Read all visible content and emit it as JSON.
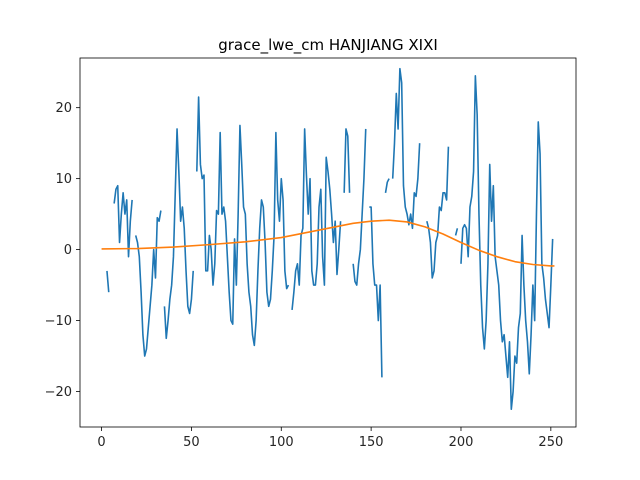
{
  "chart_data": {
    "type": "line",
    "title": "grace_lwe_cm HANJIANG XIXI",
    "xlabel": "",
    "ylabel": "",
    "xlim": [
      -12,
      264
    ],
    "ylim": [
      -25,
      27
    ],
    "x_ticks": [
      0,
      50,
      100,
      150,
      200,
      250
    ],
    "y_ticks": [
      -20,
      -10,
      0,
      10,
      20
    ],
    "grid": false,
    "series": [
      {
        "color": "#1f77b4",
        "points": [
          [
            3,
            -3
          ],
          [
            4,
            -6
          ],
          [
            7,
            6.5
          ],
          [
            8,
            8.5
          ],
          [
            9,
            9
          ],
          [
            10,
            1
          ],
          [
            11,
            5
          ],
          [
            12,
            8
          ],
          [
            13,
            5
          ],
          [
            14,
            7
          ],
          [
            15,
            -1
          ],
          [
            16,
            4
          ],
          [
            17,
            7
          ],
          [
            19,
            2
          ],
          [
            20,
            1
          ],
          [
            21,
            -1
          ],
          [
            22,
            -6
          ],
          [
            23,
            -12
          ],
          [
            24,
            -15
          ],
          [
            25,
            -14
          ],
          [
            26,
            -11
          ],
          [
            27,
            -8
          ],
          [
            28,
            -5
          ],
          [
            29,
            0
          ],
          [
            30,
            -4
          ],
          [
            31,
            4.5
          ],
          [
            32,
            4
          ],
          [
            33,
            5.5
          ],
          [
            35,
            -8
          ],
          [
            36,
            -12.5
          ],
          [
            37,
            -10
          ],
          [
            38,
            -7
          ],
          [
            39,
            -5
          ],
          [
            40,
            -1
          ],
          [
            41,
            8
          ],
          [
            42,
            17
          ],
          [
            43,
            11
          ],
          [
            44,
            4
          ],
          [
            45,
            6
          ],
          [
            46,
            3
          ],
          [
            47,
            -3
          ],
          [
            48,
            -8
          ],
          [
            49,
            -9
          ],
          [
            50,
            -7
          ],
          [
            51,
            -3
          ],
          [
            53,
            11
          ],
          [
            54,
            21.5
          ],
          [
            55,
            12
          ],
          [
            56,
            10
          ],
          [
            57,
            10.5
          ],
          [
            58,
            -3
          ],
          [
            59,
            -3
          ],
          [
            60,
            2
          ],
          [
            61,
            0
          ],
          [
            62,
            -5
          ],
          [
            63,
            -2
          ],
          [
            64,
            5.5
          ],
          [
            65,
            5
          ],
          [
            66,
            16.5
          ],
          [
            67,
            5
          ],
          [
            68,
            6
          ],
          [
            69,
            4
          ],
          [
            70,
            -1
          ],
          [
            71,
            -6
          ],
          [
            72,
            -10
          ],
          [
            73,
            -10.5
          ],
          [
            74,
            1.5
          ],
          [
            75,
            -5
          ],
          [
            76,
            5
          ],
          [
            77,
            17.5
          ],
          [
            78,
            12
          ],
          [
            79,
            6
          ],
          [
            80,
            5
          ],
          [
            81,
            -2
          ],
          [
            82,
            -6
          ],
          [
            83,
            -8
          ],
          [
            84,
            -12
          ],
          [
            85,
            -13.5
          ],
          [
            86,
            -10
          ],
          [
            87,
            -3
          ],
          [
            88,
            3
          ],
          [
            89,
            7
          ],
          [
            90,
            6
          ],
          [
            91,
            1
          ],
          [
            92,
            -6
          ],
          [
            93,
            -8
          ],
          [
            94,
            -7
          ],
          [
            95,
            -3
          ],
          [
            96,
            2
          ],
          [
            97,
            16.5
          ],
          [
            98,
            7
          ],
          [
            99,
            4
          ],
          [
            100,
            10
          ],
          [
            101,
            7
          ],
          [
            102,
            -3
          ],
          [
            103,
            -5.5
          ],
          [
            104,
            -5
          ],
          [
            106,
            -8.5
          ],
          [
            107,
            -6
          ],
          [
            108,
            -3
          ],
          [
            109,
            -2
          ],
          [
            110,
            -5
          ],
          [
            111,
            2
          ],
          [
            112,
            3
          ],
          [
            113,
            17
          ],
          [
            114,
            10.5
          ],
          [
            115,
            5
          ],
          [
            116,
            10
          ],
          [
            117,
            -3
          ],
          [
            118,
            -5
          ],
          [
            119,
            -5
          ],
          [
            120,
            -2
          ],
          [
            121,
            6
          ],
          [
            122,
            8.5
          ],
          [
            123,
            -1
          ],
          [
            124,
            -5
          ],
          [
            125,
            13
          ],
          [
            126,
            11
          ],
          [
            127,
            8.5
          ],
          [
            128,
            5
          ],
          [
            129,
            1
          ],
          [
            130,
            4
          ],
          [
            131,
            -3.5
          ],
          [
            132,
            0
          ],
          [
            133,
            4
          ],
          [
            135,
            8
          ],
          [
            136,
            17
          ],
          [
            137,
            16
          ],
          [
            138,
            8
          ],
          [
            140,
            -2
          ],
          [
            141,
            -4.5
          ],
          [
            142,
            -5
          ],
          [
            143,
            -2
          ],
          [
            144,
            0
          ],
          [
            145,
            5
          ],
          [
            146,
            10
          ],
          [
            147,
            17
          ],
          [
            149,
            6
          ],
          [
            150,
            6
          ],
          [
            151,
            -2
          ],
          [
            152,
            -5
          ],
          [
            153,
            -5
          ],
          [
            154,
            -10
          ],
          [
            155,
            -5
          ],
          [
            156,
            -18
          ],
          [
            158,
            8
          ],
          [
            159,
            9.5
          ],
          [
            160,
            10
          ],
          [
            162,
            10
          ],
          [
            163,
            15
          ],
          [
            164,
            22
          ],
          [
            165,
            17
          ],
          [
            166,
            25.5
          ],
          [
            167,
            23.5
          ],
          [
            168,
            9
          ],
          [
            169,
            6
          ],
          [
            170,
            5
          ],
          [
            171,
            3.5
          ],
          [
            172,
            5
          ],
          [
            173,
            3
          ],
          [
            174,
            8
          ],
          [
            175,
            7.5
          ],
          [
            176,
            10
          ],
          [
            177,
            15
          ],
          [
            181,
            4
          ],
          [
            182,
            3
          ],
          [
            183,
            1
          ],
          [
            184,
            -4
          ],
          [
            185,
            -3
          ],
          [
            186,
            1
          ],
          [
            187,
            2
          ],
          [
            188,
            6
          ],
          [
            189,
            5.5
          ],
          [
            190,
            8
          ],
          [
            191,
            8
          ],
          [
            192,
            7
          ],
          [
            193,
            14.5
          ],
          [
            197,
            2
          ],
          [
            198,
            3
          ],
          [
            200,
            -2
          ],
          [
            201,
            3
          ],
          [
            202,
            3.5
          ],
          [
            203,
            3
          ],
          [
            204,
            -1
          ],
          [
            205,
            6
          ],
          [
            206,
            7.5
          ],
          [
            207,
            11
          ],
          [
            208,
            24.5
          ],
          [
            209,
            19
          ],
          [
            210,
            5
          ],
          [
            211,
            -5
          ],
          [
            212,
            -11
          ],
          [
            213,
            -14
          ],
          [
            214,
            -10
          ],
          [
            215,
            -2
          ],
          [
            216,
            12
          ],
          [
            217,
            4
          ],
          [
            218,
            9
          ],
          [
            219,
            -1
          ],
          [
            220,
            -3
          ],
          [
            221,
            -5
          ],
          [
            222,
            -10
          ],
          [
            223,
            -13
          ],
          [
            224,
            -12
          ],
          [
            225,
            -15
          ],
          [
            226,
            -18
          ],
          [
            227,
            -13
          ],
          [
            228,
            -22.5
          ],
          [
            229,
            -20
          ],
          [
            230,
            -15
          ],
          [
            231,
            -16
          ],
          [
            232,
            -11
          ],
          [
            233,
            -9
          ],
          [
            234,
            2
          ],
          [
            235,
            -5
          ],
          [
            236,
            -10
          ],
          [
            237,
            -13
          ],
          [
            238,
            -17.5
          ],
          [
            239,
            -12
          ],
          [
            240,
            -5
          ],
          [
            241,
            -10
          ],
          [
            242,
            5
          ],
          [
            243,
            18
          ],
          [
            244,
            13.5
          ],
          [
            245,
            -2
          ],
          [
            246,
            -4
          ],
          [
            247,
            -7
          ],
          [
            248,
            -9
          ],
          [
            249,
            -11
          ],
          [
            250,
            -5
          ],
          [
            251,
            1.5
          ]
        ]
      },
      {
        "color": "#ff7f0e",
        "points": [
          [
            0,
            0.1
          ],
          [
            20,
            0.15
          ],
          [
            40,
            0.35
          ],
          [
            60,
            0.7
          ],
          [
            80,
            1.1
          ],
          [
            100,
            1.7
          ],
          [
            120,
            2.7
          ],
          [
            140,
            3.7
          ],
          [
            150,
            4.0
          ],
          [
            160,
            4.15
          ],
          [
            170,
            3.9
          ],
          [
            180,
            3.2
          ],
          [
            190,
            2.2
          ],
          [
            200,
            1.0
          ],
          [
            210,
            -0.1
          ],
          [
            220,
            -1.0
          ],
          [
            230,
            -1.7
          ],
          [
            240,
            -2.1
          ],
          [
            250,
            -2.3
          ],
          [
            252,
            -2.3
          ]
        ]
      }
    ]
  }
}
